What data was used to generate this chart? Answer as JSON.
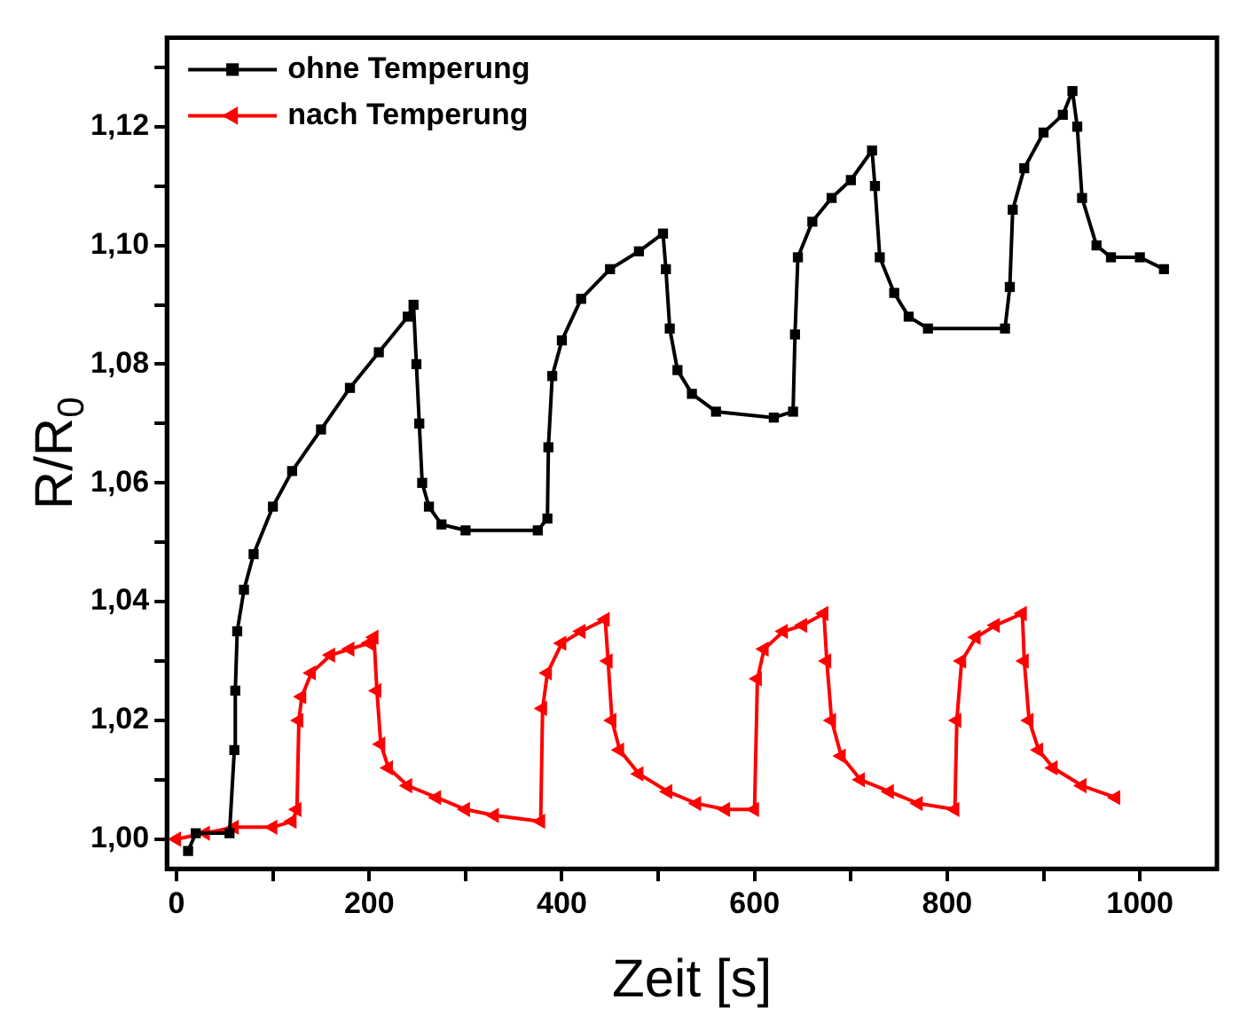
{
  "chart_data": {
    "type": "line",
    "xlabel": "Zeit [s]",
    "ylabel": "R/R$_{0}$",
    "xlim": [
      -10,
      1080
    ],
    "ylim": [
      0.995,
      1.135
    ],
    "xticks": [
      0,
      {
        "value": 100,
        "label": null
      },
      200,
      {
        "value": 300,
        "label": null
      },
      400,
      {
        "value": 500,
        "label": null
      },
      600,
      {
        "value": 700,
        "label": null
      },
      800,
      {
        "value": 900,
        "label": null
      },
      1000
    ],
    "yticks": [
      {
        "value": 1.0,
        "label": "1,00"
      },
      {
        "value": 1.01,
        "label": null
      },
      {
        "value": 1.02,
        "label": "1,02"
      },
      {
        "value": 1.03,
        "label": null
      },
      {
        "value": 1.04,
        "label": "1,04"
      },
      {
        "value": 1.05,
        "label": null
      },
      {
        "value": 1.06,
        "label": "1,06"
      },
      {
        "value": 1.07,
        "label": null
      },
      {
        "value": 1.08,
        "label": "1,08"
      },
      {
        "value": 1.09,
        "label": null
      },
      {
        "value": 1.1,
        "label": "1,10"
      },
      {
        "value": 1.11,
        "label": null
      },
      {
        "value": 1.12,
        "label": "1,12"
      },
      {
        "value": 1.13,
        "label": null
      }
    ],
    "grid": false,
    "legend": "top left",
    "line_style": "solid",
    "series": [
      {
        "name": "ohne Temperung",
        "color": "#000000",
        "marker": "square",
        "x": [
          12,
          20,
          55,
          60,
          61,
          63,
          70,
          80,
          100,
          120,
          150,
          180,
          210,
          240,
          246,
          249,
          252,
          255,
          262,
          275,
          300,
          375,
          385,
          386,
          390,
          400,
          420,
          450,
          480,
          505,
          508,
          512,
          520,
          535,
          560,
          620,
          640,
          642,
          645,
          660,
          680,
          700,
          722,
          725,
          730,
          745,
          760,
          780,
          860,
          865,
          868,
          880,
          900,
          920,
          930,
          935,
          940,
          955,
          970,
          1000,
          1025
        ],
        "values": [
          0.998,
          1.001,
          1.001,
          1.015,
          1.025,
          1.035,
          1.042,
          1.048,
          1.056,
          1.062,
          1.069,
          1.076,
          1.082,
          1.088,
          1.09,
          1.08,
          1.07,
          1.06,
          1.056,
          1.053,
          1.052,
          1.052,
          1.054,
          1.066,
          1.078,
          1.084,
          1.091,
          1.096,
          1.099,
          1.102,
          1.096,
          1.086,
          1.079,
          1.075,
          1.072,
          1.071,
          1.072,
          1.085,
          1.098,
          1.104,
          1.108,
          1.111,
          1.116,
          1.11,
          1.098,
          1.092,
          1.088,
          1.086,
          1.086,
          1.093,
          1.106,
          1.113,
          1.119,
          1.122,
          1.126,
          1.12,
          1.108,
          1.1,
          1.098,
          1.098,
          1.096
        ]
      },
      {
        "name": "nach Temperung",
        "color": "#ff0000",
        "marker": "triangle",
        "x": [
          0,
          30,
          60,
          100,
          120,
          125,
          127,
          130,
          140,
          160,
          180,
          200,
          205,
          208,
          212,
          220,
          240,
          270,
          300,
          330,
          378,
          380,
          385,
          400,
          420,
          445,
          448,
          452,
          460,
          480,
          510,
          540,
          570,
          600,
          603,
          610,
          630,
          650,
          672,
          675,
          680,
          690,
          710,
          740,
          770,
          808,
          810,
          815,
          830,
          850,
          878,
          880,
          885,
          895,
          910,
          940,
          975
        ],
        "values": [
          1.0,
          1.001,
          1.002,
          1.002,
          1.003,
          1.005,
          1.02,
          1.024,
          1.028,
          1.031,
          1.032,
          1.033,
          1.034,
          1.025,
          1.016,
          1.012,
          1.009,
          1.007,
          1.005,
          1.004,
          1.003,
          1.022,
          1.028,
          1.033,
          1.035,
          1.037,
          1.03,
          1.02,
          1.015,
          1.011,
          1.008,
          1.006,
          1.005,
          1.005,
          1.027,
          1.032,
          1.035,
          1.036,
          1.038,
          1.03,
          1.02,
          1.014,
          1.01,
          1.008,
          1.006,
          1.005,
          1.02,
          1.03,
          1.034,
          1.036,
          1.038,
          1.03,
          1.02,
          1.015,
          1.012,
          1.009,
          1.007
        ]
      }
    ]
  }
}
